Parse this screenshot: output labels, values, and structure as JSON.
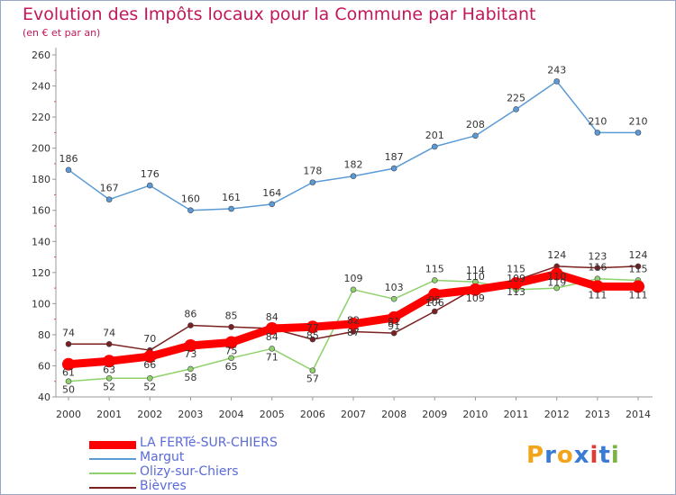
{
  "header": {
    "title": "Evolution des Impôts locaux pour la Commune par Habitant",
    "subtitle": "(en € et par an)"
  },
  "logo": {
    "text": "Proxiti",
    "colors": [
      "#f2a51a",
      "#3a7bd5",
      "#f2a51a",
      "#3a7bd5",
      "#e53935",
      "#3a7bd5",
      "#7cb342"
    ]
  },
  "chart_data": {
    "type": "line",
    "x": [
      2000,
      2001,
      2002,
      2003,
      2004,
      2005,
      2006,
      2007,
      2008,
      2009,
      2010,
      2011,
      2012,
      2013,
      2014
    ],
    "ylim": [
      40,
      260
    ],
    "yticks": [
      40,
      60,
      80,
      100,
      120,
      140,
      160,
      180,
      200,
      220,
      240,
      260
    ],
    "grid": false,
    "legend_position": "bottom-left",
    "series": [
      {
        "name": "LA FERTé-SUR-CHIERS",
        "color": "#ff0000",
        "width": 9,
        "values": [
          61,
          63,
          66,
          73,
          75,
          84,
          85,
          87,
          91,
          106,
          109,
          113,
          119,
          111,
          111
        ]
      },
      {
        "name": "Margut",
        "color": "#5b9bd5",
        "width": 1.5,
        "values": [
          186,
          167,
          176,
          160,
          161,
          164,
          178,
          182,
          187,
          201,
          208,
          225,
          243,
          210,
          210
        ]
      },
      {
        "name": "Olizy-sur-Chiers",
        "color": "#8fd16a",
        "width": 1.5,
        "values": [
          50,
          52,
          52,
          58,
          65,
          71,
          57,
          109,
          103,
          115,
          114,
          109,
          110,
          116,
          115
        ]
      },
      {
        "name": "Bièvres",
        "color": "#7b1f1f",
        "width": 1.5,
        "values": [
          74,
          74,
          70,
          86,
          85,
          84,
          77,
          82,
          81,
          95,
          110,
          115,
          124,
          123,
          124
        ]
      }
    ]
  }
}
